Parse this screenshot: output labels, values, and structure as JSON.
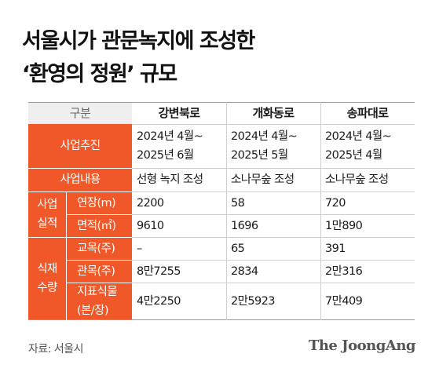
{
  "title": {
    "line1": "서울시가 관문녹지에 조성한",
    "line2": "‘환영의 정원’ 규모"
  },
  "table": {
    "header": {
      "label": "구분",
      "cols": [
        "강변북로",
        "개화동로",
        "송파대로"
      ]
    },
    "rows": {
      "promotion": {
        "label": "사업추진",
        "values": [
          [
            "2024년 4월~",
            "2025년 6월"
          ],
          [
            "2024년 4월~",
            "2025년 5월"
          ],
          [
            "2024년 4월~",
            "2025년 4월"
          ]
        ]
      },
      "content": {
        "label": "사업내용",
        "values": [
          "선형 녹지 조성",
          "소나무숲 조성",
          "소나무숲 조성"
        ]
      },
      "performance": {
        "group_line1": "사업",
        "group_line2": "실적",
        "length": {
          "label": "연장(m)",
          "values": [
            "2200",
            "58",
            "720"
          ]
        },
        "area": {
          "label": "면적(㎡)",
          "values": [
            "9610",
            "1696",
            "1만890"
          ]
        }
      },
      "planting": {
        "group_line1": "식재",
        "group_line2": "수량",
        "tall_trees": {
          "label": "교목(주)",
          "values": [
            "–",
            "65",
            "391"
          ]
        },
        "shrubs": {
          "label": "관목(주)",
          "values": [
            "8만7255",
            "2834",
            "2만316"
          ]
        },
        "groundcover": {
          "label_line1": "지표식물",
          "label_line2": "(본/장)",
          "values": [
            "4만2250",
            "2만5923",
            "7만409"
          ]
        }
      }
    }
  },
  "footer": {
    "source": "자료: 서울시",
    "logo": "The JoongAng"
  },
  "colors": {
    "accent": "#f0582a",
    "header_bg": "#efefef",
    "divider": "#cfcfcf"
  }
}
